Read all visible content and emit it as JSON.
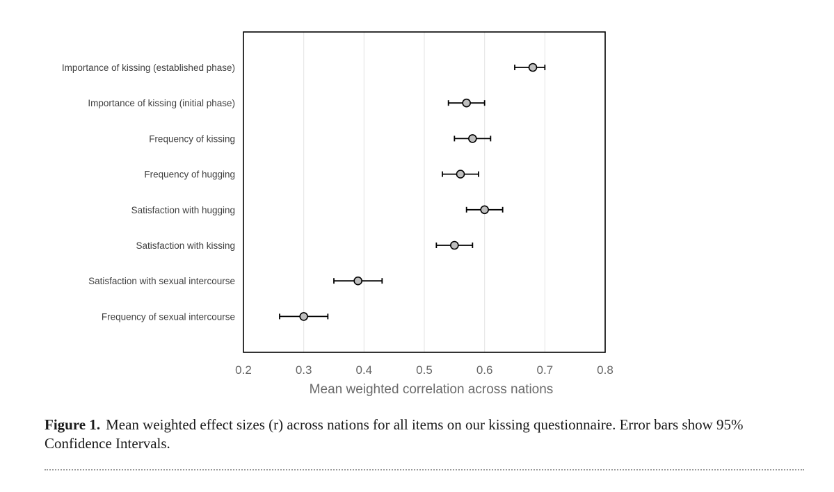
{
  "chart_data": {
    "type": "scatter",
    "orientation": "horizontal",
    "categories": [
      "Importance of kissing (established phase)",
      "Importance of kissing (initial phase)",
      "Frequency of kissing",
      "Frequency of hugging",
      "Satisfaction with hugging",
      "Satisfaction with kissing",
      "Satisfaction with sexual intercourse",
      "Frequency of sexual intercourse"
    ],
    "values": [
      0.68,
      0.57,
      0.58,
      0.56,
      0.6,
      0.55,
      0.39,
      0.3
    ],
    "ci_lower": [
      0.65,
      0.54,
      0.55,
      0.53,
      0.57,
      0.52,
      0.35,
      0.26
    ],
    "ci_upper": [
      0.7,
      0.6,
      0.61,
      0.59,
      0.63,
      0.58,
      0.43,
      0.34
    ],
    "xlabel": "Mean weighted correlation across nations",
    "ylabel": "",
    "xlim": [
      0.2,
      0.8
    ],
    "xticks": [
      "0.2",
      "0.3",
      "0.4",
      "0.5",
      "0.6",
      "0.7",
      "0.8"
    ],
    "grid": "vertical",
    "marker_color": "#bfbfbf"
  },
  "caption": {
    "label": "Figure 1.",
    "text": "Mean weighted effect sizes (r) across nations for all items on our kissing questionnaire. Error bars show 95% Confidence Intervals."
  }
}
